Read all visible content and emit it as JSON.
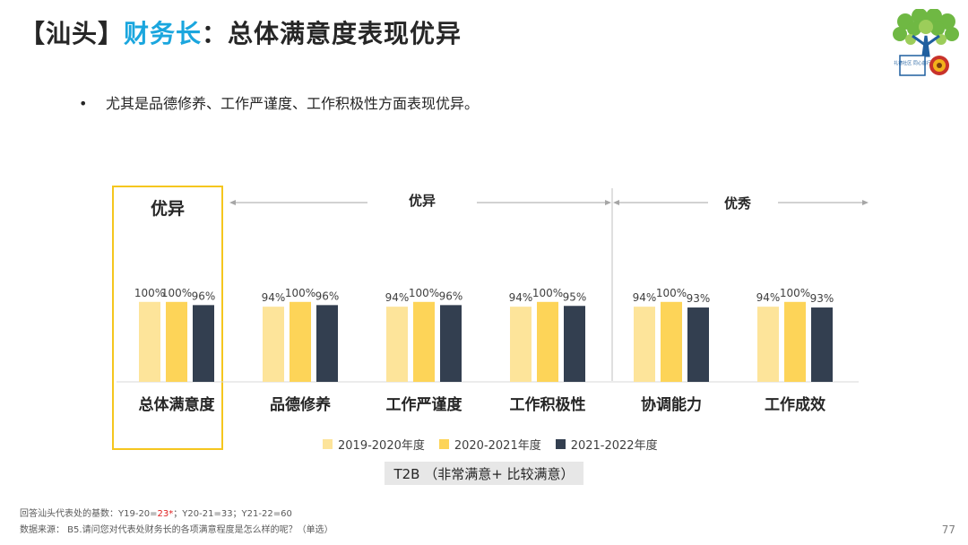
{
  "header": {
    "title_prefix": "【汕头】",
    "title_accent": "财务长",
    "title_suffix": "：总体满意度表现优异"
  },
  "logo": {
    "caption": "礼德社区 同心前行"
  },
  "bullet": {
    "text": "尤其是品德修养、工作严谨度、工作积极性方面表现优异。"
  },
  "groups": {
    "overall": "优异",
    "group1": "优异",
    "group2": "优秀"
  },
  "colors": {
    "s1": "#fde49a",
    "s2": "#fdd458",
    "s3": "#333f50",
    "highlight": "#f5c61e",
    "title_accent": "#1aa6de"
  },
  "chart_data": {
    "type": "bar",
    "categories": [
      "总体满意度",
      "品德修养",
      "工作严谨度",
      "工作积极性",
      "协调能力",
      "工作成效"
    ],
    "series": [
      {
        "name": "2019-2020年度",
        "values": [
          100,
          94,
          94,
          94,
          94,
          94
        ]
      },
      {
        "name": "2020-2021年度",
        "values": [
          100,
          100,
          100,
          100,
          100,
          100
        ]
      },
      {
        "name": "2021-2022年度",
        "values": [
          96,
          96,
          96,
          95,
          93,
          93
        ]
      }
    ],
    "value_suffix": "%",
    "ylim": [
      0,
      100
    ],
    "legend_position": "bottom",
    "grid": false
  },
  "metric_label": "T2B （非常满意+ 比较满意）",
  "footnotes": {
    "base_prefix": "回答汕头代表处的基数：Y19-20=",
    "base_red": "23*",
    "base_suffix": "；Y20-21=33；Y21-22=60",
    "source": "数据来源：  B5.请问您对代表处财务长的各项满意程度是怎么样的呢？（单选）"
  },
  "page_number": "77"
}
